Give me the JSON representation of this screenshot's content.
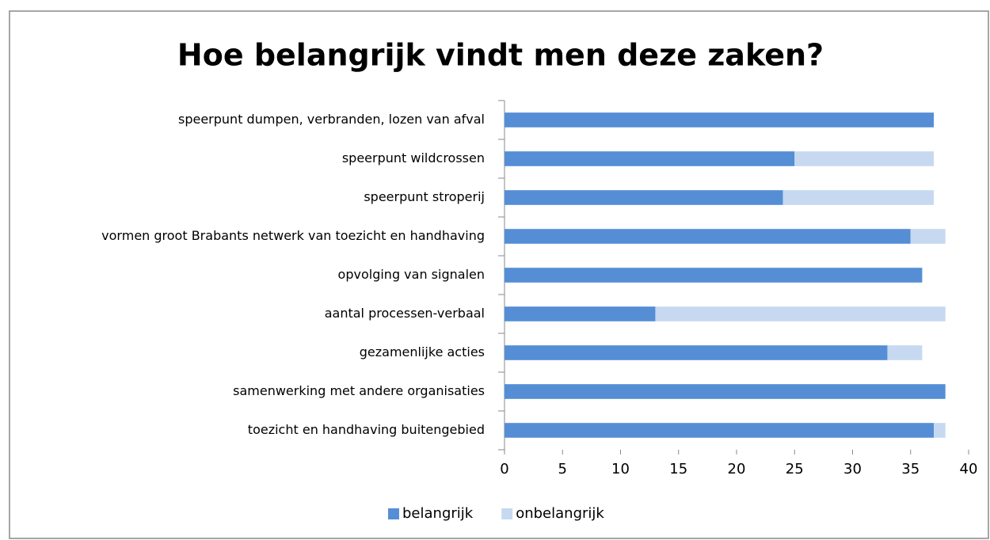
{
  "chart_data": {
    "type": "bar",
    "orientation": "horizontal",
    "stacked": true,
    "title": "Hoe belangrijk vindt men deze zaken?",
    "categories": [
      "speerpunt dumpen, verbranden, lozen van afval",
      "speerpunt wildcrossen",
      "speerpunt stroperij",
      "vormen groot Brabants netwerk van toezicht en handhaving",
      "opvolging van signalen",
      "aantal processen-verbaal",
      "gezamenlijke acties",
      "samenwerking met andere organisaties",
      "toezicht en handhaving buitengebied"
    ],
    "series": [
      {
        "name": "belangrijk",
        "color": "#558ed5",
        "values": [
          37,
          25,
          24,
          35,
          36,
          13,
          33,
          38,
          37
        ]
      },
      {
        "name": "onbelangrijk",
        "color": "#c6d9f1",
        "values": [
          0,
          12,
          13,
          3,
          0,
          25,
          3,
          0,
          1
        ]
      }
    ],
    "xlim": [
      0,
      40
    ],
    "xticks": [
      0,
      5,
      10,
      15,
      20,
      25,
      30,
      35,
      40
    ],
    "legend": "bottom"
  }
}
